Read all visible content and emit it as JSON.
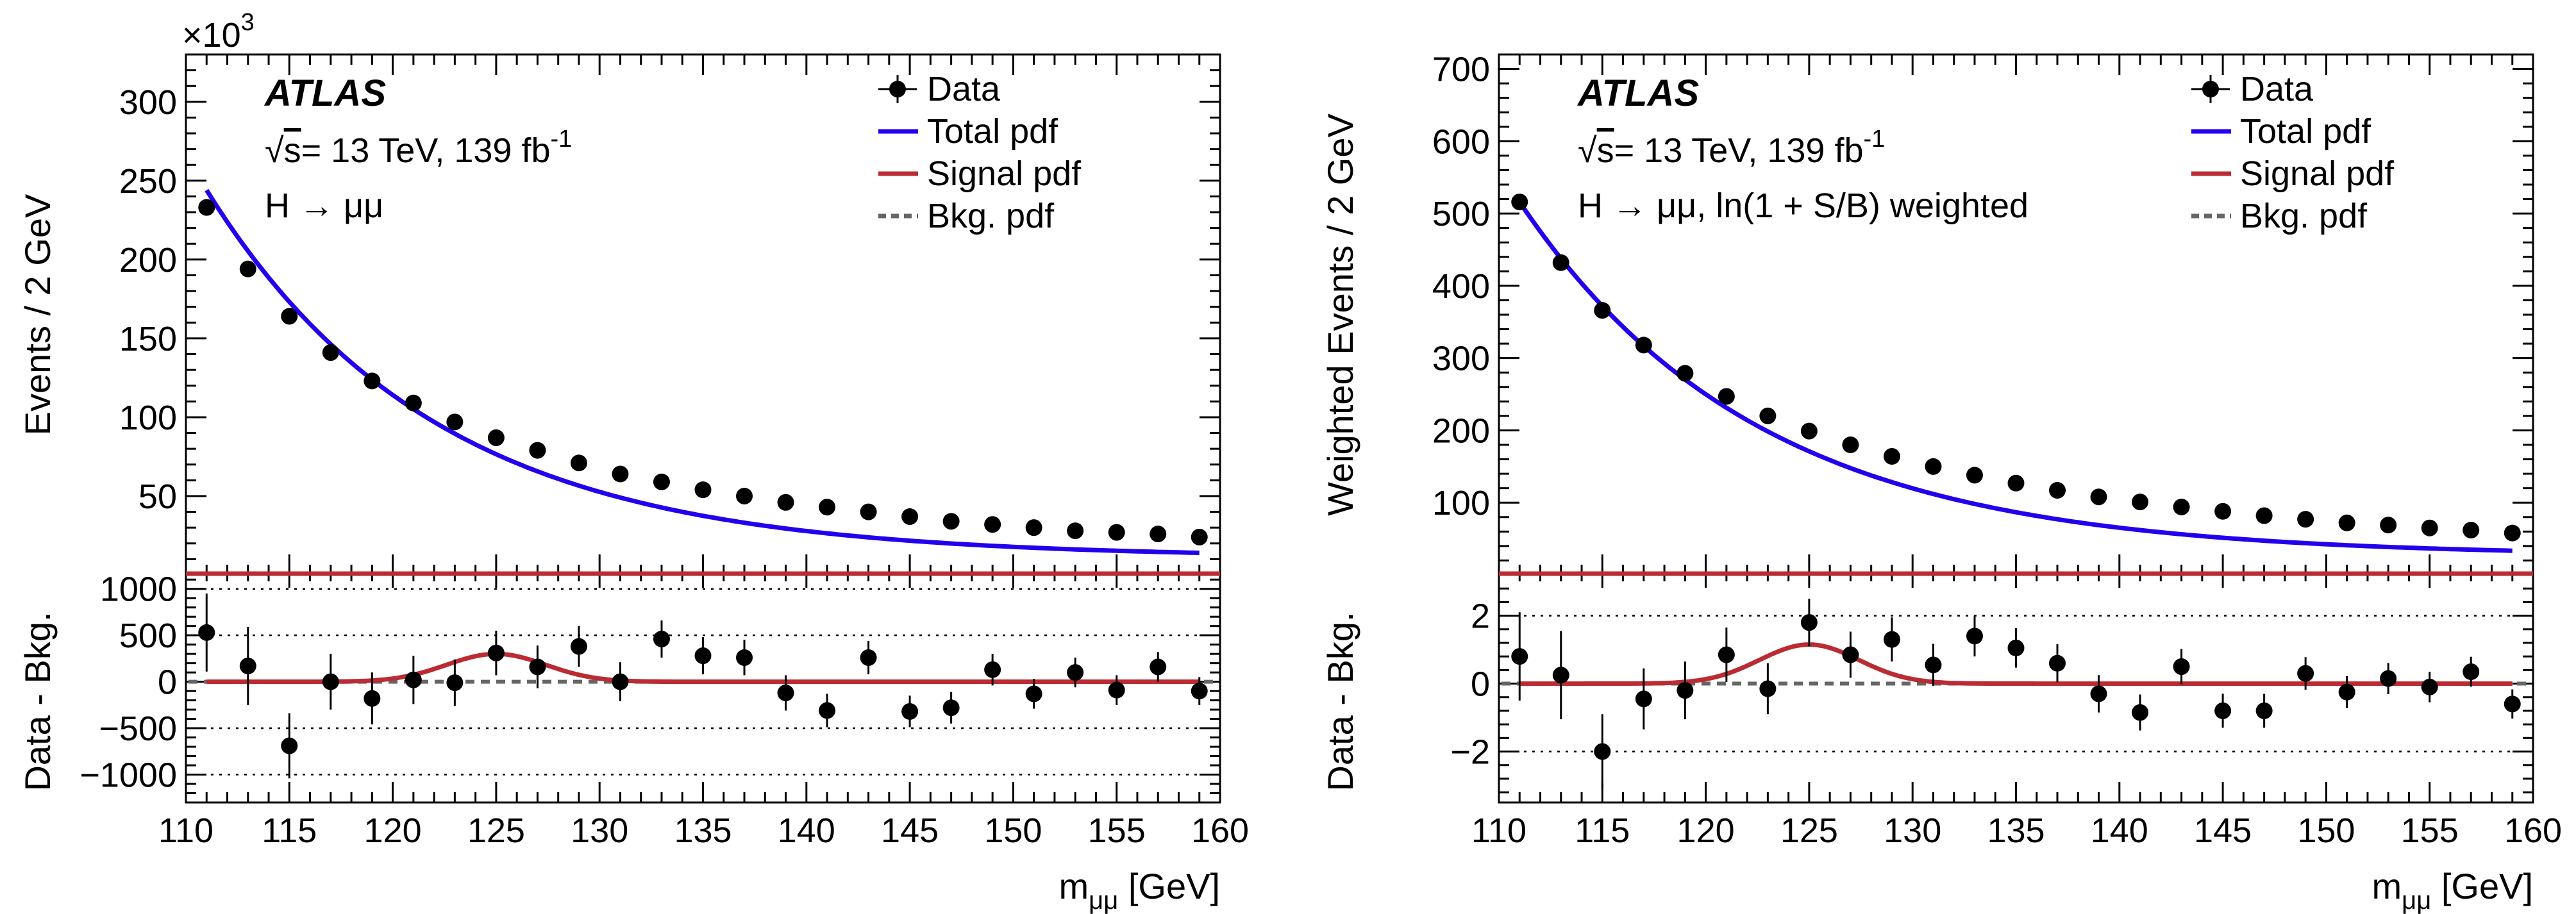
{
  "chart_data": [
    {
      "type": "scatter",
      "panel": "left",
      "experiment_label": "ATLAS",
      "energy_label": "= 13 TeV, 139 fb",
      "energy_sup": "-1",
      "process_label": "H → μμ",
      "x_unit_label": "m",
      "x_sub": "μμ",
      "x_unit": " [GeV]",
      "xlim": [
        110,
        160
      ],
      "x_ticks": [
        110,
        115,
        120,
        125,
        130,
        135,
        140,
        145,
        150,
        155,
        160
      ],
      "top": {
        "ylabel": "Events / 2 GeV",
        "y_multiplier": "×10",
        "y_multiplier_exp": "3",
        "ylim": [
          0,
          330
        ],
        "y_ticks": [
          50,
          100,
          150,
          200,
          250,
          300
        ],
        "data": {
          "x": [
            111,
            113,
            115,
            117,
            119,
            121,
            123,
            125,
            127,
            129,
            131,
            133,
            135,
            137,
            139,
            141,
            143,
            145,
            147,
            149,
            151,
            153,
            155,
            157,
            159
          ],
          "y": [
            233,
            194,
            164,
            141,
            123,
            109,
            97,
            87,
            79,
            71,
            64,
            59,
            54,
            50,
            46,
            43,
            40,
            37,
            34,
            32,
            30,
            28,
            27,
            26,
            24
          ]
        },
        "total_pdf": {
          "amplitude": 233,
          "decay": 0.0906,
          "offset": 11
        },
        "legend": [
          {
            "label": "Data",
            "kind": "marker",
            "color": "#000000"
          },
          {
            "label": "Total pdf",
            "kind": "line",
            "color": "#2200ee"
          },
          {
            "label": "Signal pdf",
            "kind": "line",
            "color": "#bb2b33"
          },
          {
            "label": "Bkg. pdf",
            "kind": "dashed",
            "color": "#666666"
          }
        ]
      },
      "bottom": {
        "ylabel": "Data - Bkg.",
        "ylim": [
          -1300,
          1150
        ],
        "y_ticks": [
          -1000,
          -500,
          0,
          500,
          1000
        ],
        "y_grid": [
          -1000,
          -500,
          500,
          1000
        ],
        "data": {
          "x": [
            111,
            113,
            115,
            117,
            119,
            121,
            123,
            125,
            127,
            129,
            131,
            133,
            135,
            137,
            139,
            141,
            143,
            145,
            147,
            149,
            151,
            153,
            155,
            157,
            159
          ],
          "y": [
            530,
            170,
            -690,
            0,
            -180,
            20,
            -10,
            310,
            160,
            380,
            0,
            460,
            280,
            260,
            -120,
            -310,
            260,
            -320,
            -280,
            130,
            -130,
            100,
            -90,
            160,
            -100
          ],
          "err": [
            420,
            420,
            350,
            300,
            280,
            260,
            250,
            240,
            230,
            220,
            210,
            200,
            200,
            190,
            190,
            180,
            180,
            170,
            170,
            170,
            160,
            160,
            160,
            160,
            150
          ]
        },
        "signal_pdf": {
          "mean": 125,
          "sigma": 2.4,
          "amplitude": 300
        }
      }
    },
    {
      "type": "scatter",
      "panel": "right",
      "experiment_label": "ATLAS",
      "energy_label": "= 13 TeV, 139 fb",
      "energy_sup": "-1",
      "process_label": "H → μμ, ln(1 + S/B) weighted",
      "x_unit_label": "m",
      "x_sub": "μμ",
      "x_unit": " [GeV]",
      "xlim": [
        110,
        160
      ],
      "x_ticks": [
        110,
        115,
        120,
        125,
        130,
        135,
        140,
        145,
        150,
        155,
        160
      ],
      "top": {
        "ylabel": "Weighted Events / 2 GeV",
        "ylim": [
          0,
          720
        ],
        "y_ticks": [
          100,
          200,
          300,
          400,
          500,
          600,
          700
        ],
        "data": {
          "x": [
            111,
            113,
            115,
            117,
            119,
            121,
            123,
            125,
            127,
            129,
            131,
            133,
            135,
            137,
            139,
            141,
            143,
            145,
            147,
            149,
            151,
            153,
            155,
            157,
            159
          ],
          "y": [
            516,
            432,
            366,
            318,
            279,
            247,
            220,
            199,
            180,
            164,
            150,
            138,
            127,
            117,
            108,
            101,
            94,
            88,
            82,
            77,
            72,
            69,
            65,
            62,
            58
          ]
        },
        "total_pdf": {
          "amplitude": 490,
          "decay": 0.087,
          "offset": 26
        },
        "legend": [
          {
            "label": "Data",
            "kind": "marker",
            "color": "#000000"
          },
          {
            "label": "Total pdf",
            "kind": "line",
            "color": "#2200ee"
          },
          {
            "label": "Signal pdf",
            "kind": "line",
            "color": "#bb2b33"
          },
          {
            "label": "Bkg. pdf",
            "kind": "dashed",
            "color": "#666666"
          }
        ]
      },
      "bottom": {
        "ylabel": "Data - Bkg.",
        "ylim": [
          -3.5,
          3.2
        ],
        "y_ticks": [
          -2,
          0,
          2
        ],
        "y_grid": [
          -2,
          2
        ],
        "data": {
          "x": [
            111,
            113,
            115,
            117,
            119,
            121,
            123,
            125,
            127,
            129,
            131,
            133,
            135,
            137,
            139,
            141,
            143,
            145,
            147,
            149,
            151,
            153,
            155,
            157,
            159
          ],
          "y": [
            0.8,
            0.25,
            -2.0,
            -0.45,
            -0.2,
            0.85,
            -0.15,
            1.8,
            0.85,
            1.3,
            0.55,
            1.4,
            1.05,
            0.6,
            -0.3,
            -0.85,
            0.5,
            -0.8,
            -0.8,
            0.3,
            -0.25,
            0.15,
            -0.1,
            0.35,
            -0.6
          ],
          "err": [
            1.3,
            1.3,
            1.1,
            0.9,
            0.85,
            0.8,
            0.75,
            0.7,
            0.68,
            0.65,
            0.62,
            0.6,
            0.58,
            0.56,
            0.55,
            0.53,
            0.52,
            0.5,
            0.5,
            0.48,
            0.47,
            0.46,
            0.45,
            0.44,
            0.43
          ]
        },
        "signal_pdf": {
          "mean": 125,
          "sigma": 2.4,
          "amplitude": 1.15
        }
      }
    }
  ]
}
